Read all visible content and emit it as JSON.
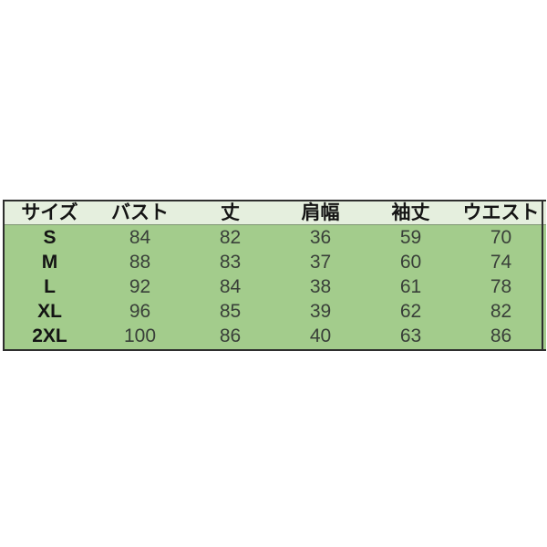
{
  "chart_data": {
    "type": "table",
    "title": "",
    "columns": [
      "サイズ",
      "バスト",
      "丈",
      "肩幅",
      "袖丈",
      "ウエスト"
    ],
    "rows": [
      [
        "S",
        84,
        82,
        36,
        59,
        70
      ],
      [
        "M",
        88,
        83,
        37,
        60,
        74
      ],
      [
        "L",
        92,
        84,
        38,
        61,
        78
      ],
      [
        "XL",
        96,
        85,
        39,
        62,
        82
      ],
      [
        "2XL",
        100,
        86,
        40,
        63,
        86
      ]
    ]
  },
  "colors": {
    "page_background": "#ffffff",
    "header_background": "#e5efde",
    "row_background": "#a3cc8c",
    "border": "#2e2e2e",
    "header_divider": "#7e9472",
    "header_text": "#141414",
    "value_text": "#393f39"
  }
}
